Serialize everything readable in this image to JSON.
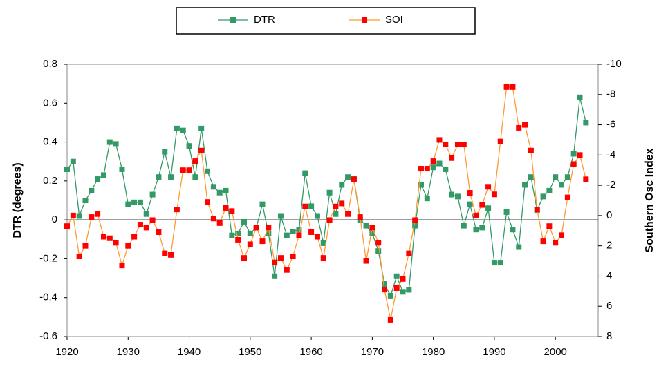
{
  "chart_data": {
    "type": "line",
    "x": [
      1920,
      1921,
      1922,
      1923,
      1924,
      1925,
      1926,
      1927,
      1928,
      1929,
      1930,
      1931,
      1932,
      1933,
      1934,
      1935,
      1936,
      1937,
      1938,
      1939,
      1940,
      1941,
      1942,
      1943,
      1944,
      1945,
      1946,
      1947,
      1948,
      1949,
      1950,
      1951,
      1952,
      1953,
      1954,
      1955,
      1956,
      1957,
      1958,
      1959,
      1960,
      1961,
      1962,
      1963,
      1964,
      1965,
      1966,
      1967,
      1968,
      1969,
      1970,
      1971,
      1972,
      1973,
      1974,
      1975,
      1976,
      1977,
      1978,
      1979,
      1980,
      1981,
      1982,
      1983,
      1984,
      1985,
      1986,
      1987,
      1988,
      1989,
      1990,
      1991,
      1992,
      1993,
      1994,
      1995,
      1996,
      1997,
      1998,
      1999,
      2000,
      2001,
      2002,
      2003,
      2004,
      2005
    ],
    "series": [
      {
        "name": "DTR",
        "color": "#339966",
        "line_color": "#339966",
        "values": [
          0.26,
          0.3,
          0.02,
          0.1,
          0.15,
          0.21,
          0.23,
          0.4,
          0.39,
          0.26,
          0.08,
          0.09,
          0.09,
          0.03,
          0.13,
          0.22,
          0.35,
          0.22,
          0.47,
          0.46,
          0.38,
          0.22,
          0.47,
          0.25,
          0.17,
          0.14,
          0.15,
          -0.08,
          -0.07,
          -0.01,
          -0.07,
          -0.04,
          0.08,
          -0.07,
          -0.29,
          0.02,
          -0.08,
          -0.06,
          -0.05,
          0.24,
          0.07,
          0.02,
          -0.12,
          0.14,
          0.03,
          0.18,
          0.22,
          0.21,
          0.0,
          -0.03,
          -0.07,
          -0.16,
          -0.33,
          -0.39,
          -0.29,
          -0.37,
          -0.36,
          -0.03,
          0.18,
          0.11,
          0.27,
          0.29,
          0.26,
          0.13,
          0.12,
          -0.03,
          0.08,
          -0.05,
          -0.04,
          0.06,
          -0.22,
          -0.22,
          0.04,
          -0.05,
          -0.14,
          0.18,
          0.22,
          0.05,
          0.12,
          0.15,
          0.22,
          0.18,
          0.22,
          0.34,
          0.63,
          0.5
        ]
      },
      {
        "name": "SOI",
        "color": "#ff0000",
        "line_color": "#ff9933",
        "axis": "y2",
        "values": [
          0.7,
          0,
          2.7,
          2.0,
          0.1,
          -0.1,
          1.4,
          1.5,
          1.8,
          3.3,
          2.0,
          1.4,
          0.6,
          0.8,
          0.3,
          1.1,
          2.5,
          2.6,
          -0.4,
          -3.0,
          -3.0,
          -3.6,
          -4.3,
          -0.9,
          0.2,
          0.5,
          -0.5,
          -0.3,
          1.6,
          2.8,
          1.9,
          0.8,
          1.7,
          0.8,
          3.1,
          2.8,
          3.6,
          2.7,
          1.3,
          -0.6,
          1.1,
          1.4,
          2.8,
          0.3,
          -0.6,
          -0.8,
          -0.1,
          -2.4,
          0.1,
          3.0,
          0.8,
          1.8,
          4.9,
          6.9,
          4.8,
          4.2,
          2.5,
          0.3,
          -3.1,
          -3.1,
          -3.6,
          -5.0,
          -4.7,
          -3.8,
          -4.7,
          -4.7,
          -1.5,
          0.0,
          -0.7,
          -1.9,
          -1.4,
          -4.9,
          -8.5,
          -8.5,
          -5.8,
          -6.0,
          -4.3,
          -0.4,
          1.7,
          0.7,
          1.8,
          1.3,
          -1.2,
          -3.4,
          -4.0,
          -2.4
        ]
      }
    ],
    "xlim": [
      1920,
      2007
    ],
    "xticks": [
      1920,
      1930,
      1940,
      1950,
      1960,
      1970,
      1980,
      1990,
      2000
    ],
    "ylim": [
      -0.6,
      0.8
    ],
    "yticks": [
      0.8,
      0.6,
      0.4,
      0.2,
      0,
      -0.2,
      -0.4,
      -0.6
    ],
    "y2lim": [
      8,
      -10
    ],
    "y2ticks": [
      -10,
      -8,
      -6,
      -4,
      -2,
      0,
      2,
      4,
      6,
      8
    ],
    "ylabel": "DTR (degrees)",
    "y2label": "Southern Osc Index",
    "zero_line": true,
    "legend": "top"
  }
}
